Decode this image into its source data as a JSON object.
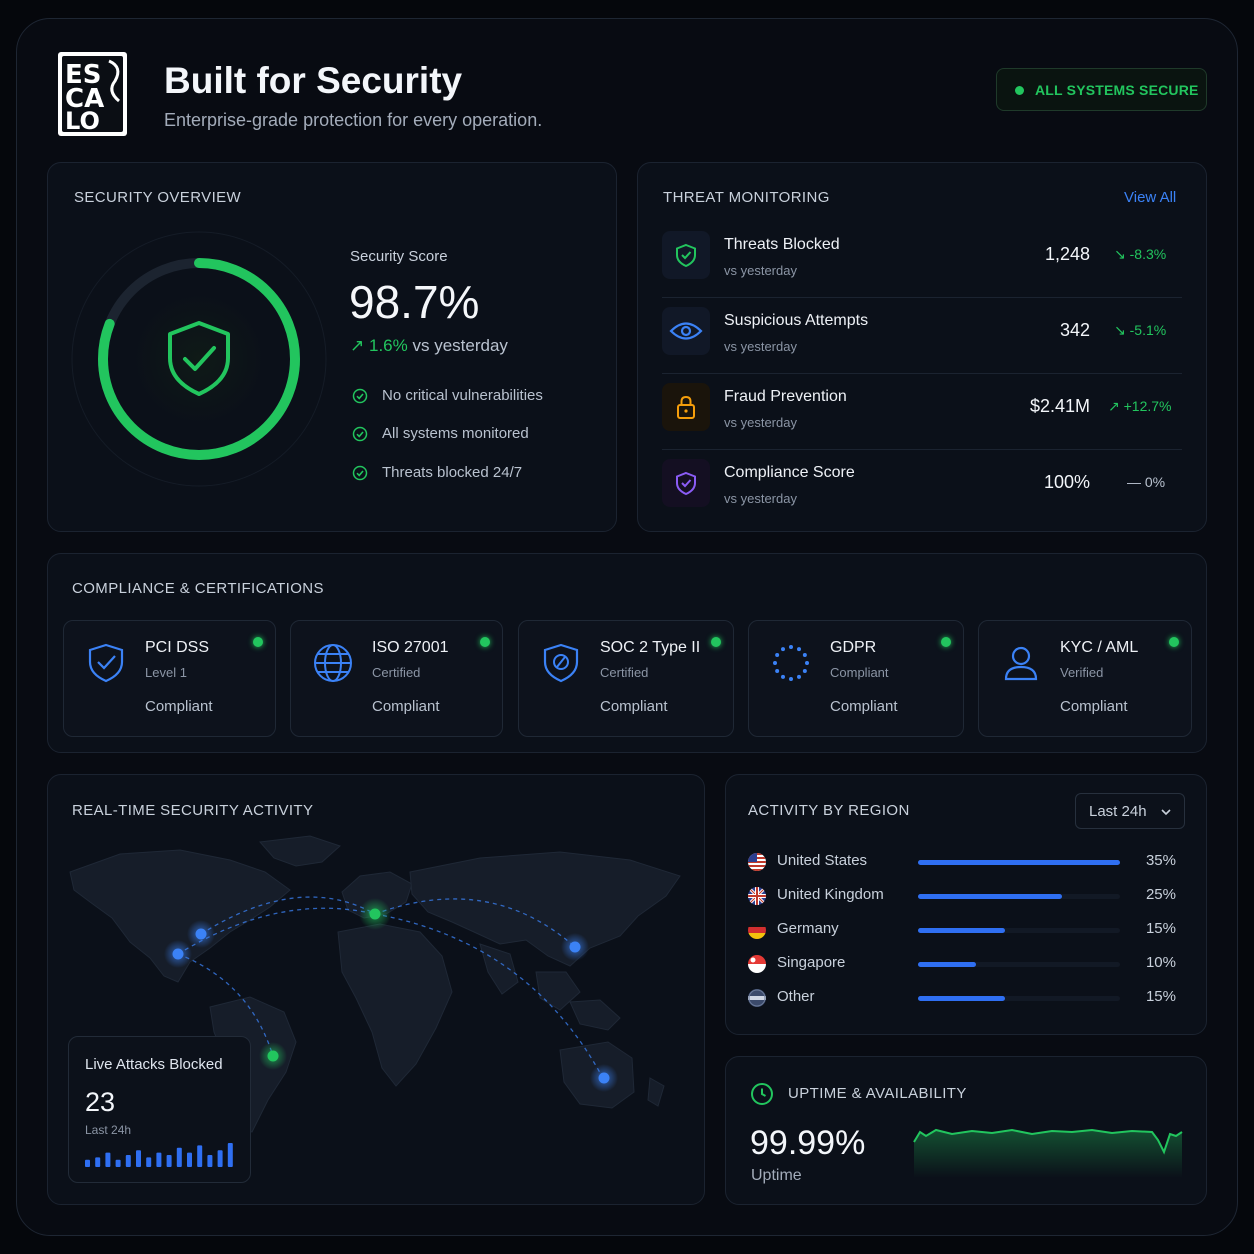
{
  "header": {
    "title": "Built for Security",
    "subtitle": "Enterprise-grade protection for every operation.",
    "status": "ALL SYSTEMS SECURE",
    "logo_text": "ESCALO"
  },
  "overview": {
    "title": "SECURITY OVERVIEW",
    "score_label": "Security Score",
    "score_value": "98.7%",
    "score_fraction": 0.987,
    "delta": "1.6%",
    "delta_suffix": "vs yesterday",
    "checks": [
      "No critical vulnerabilities",
      "All systems monitored",
      "Threats blocked 24/7"
    ]
  },
  "threats": {
    "title": "THREAT MONITORING",
    "view_all": "View All",
    "rows": [
      {
        "name": "Threats Blocked",
        "sub": "vs yesterday",
        "value": "1,248",
        "change": "-8.3%",
        "dir": "down",
        "icon": "shield-check-icon"
      },
      {
        "name": "Suspicious Attempts",
        "sub": "vs yesterday",
        "value": "342",
        "change": "-5.1%",
        "dir": "down",
        "icon": "eye-icon"
      },
      {
        "name": "Fraud Prevention",
        "sub": "vs yesterday",
        "value": "$2.41M",
        "change": "+12.7%",
        "dir": "up",
        "icon": "lock-icon"
      },
      {
        "name": "Compliance Score",
        "sub": "vs yesterday",
        "value": "100%",
        "change": "0%",
        "dir": "flat",
        "icon": "shield-check-purple-icon"
      }
    ]
  },
  "compliance": {
    "title": "COMPLIANCE & CERTIFICATIONS",
    "cards": [
      {
        "name": "PCI DSS",
        "level": "Level 1",
        "status": "Compliant",
        "icon": "shield-check-icon"
      },
      {
        "name": "ISO 27001",
        "level": "Certified",
        "status": "Compliant",
        "icon": "globe-icon"
      },
      {
        "name": "SOC 2 Type II",
        "level": "Certified",
        "status": "Compliant",
        "icon": "shield-slash-icon"
      },
      {
        "name": "GDPR",
        "level": "Compliant",
        "status": "Compliant",
        "icon": "eu-stars-icon"
      },
      {
        "name": "KYC / AML",
        "level": "Verified",
        "status": "Compliant",
        "icon": "user-icon"
      }
    ]
  },
  "activity": {
    "title": "REAL-TIME SECURITY ACTIVITY",
    "live_label": "Live Attacks Blocked",
    "live_value": "23",
    "live_period": "Last 24h",
    "sparkbars": [
      3,
      4,
      6,
      3,
      5,
      7,
      4,
      6,
      5,
      8,
      6,
      9,
      5,
      7,
      10
    ]
  },
  "regions": {
    "title": "ACTIVITY BY REGION",
    "range": "Last 24h",
    "items": [
      {
        "name": "United States",
        "pct": "35%",
        "value": 35,
        "flag": "us-flag-icon"
      },
      {
        "name": "United Kingdom",
        "pct": "25%",
        "value": 25,
        "flag": "uk-flag-icon"
      },
      {
        "name": "Germany",
        "pct": "15%",
        "value": 15,
        "flag": "de-flag-icon"
      },
      {
        "name": "Singapore",
        "pct": "10%",
        "value": 10,
        "flag": "sg-flag-icon"
      },
      {
        "name": "Other",
        "pct": "15%",
        "value": 15,
        "flag": "globe-flag-icon"
      }
    ]
  },
  "uptime": {
    "title": "UPTIME & AVAILABILITY",
    "value": "99.99%",
    "label": "Uptime"
  },
  "colors": {
    "accent_green": "#22c55e",
    "accent_blue": "#3b82f6",
    "warning_orange": "#f59e0b",
    "purple": "#8b5cf6"
  }
}
